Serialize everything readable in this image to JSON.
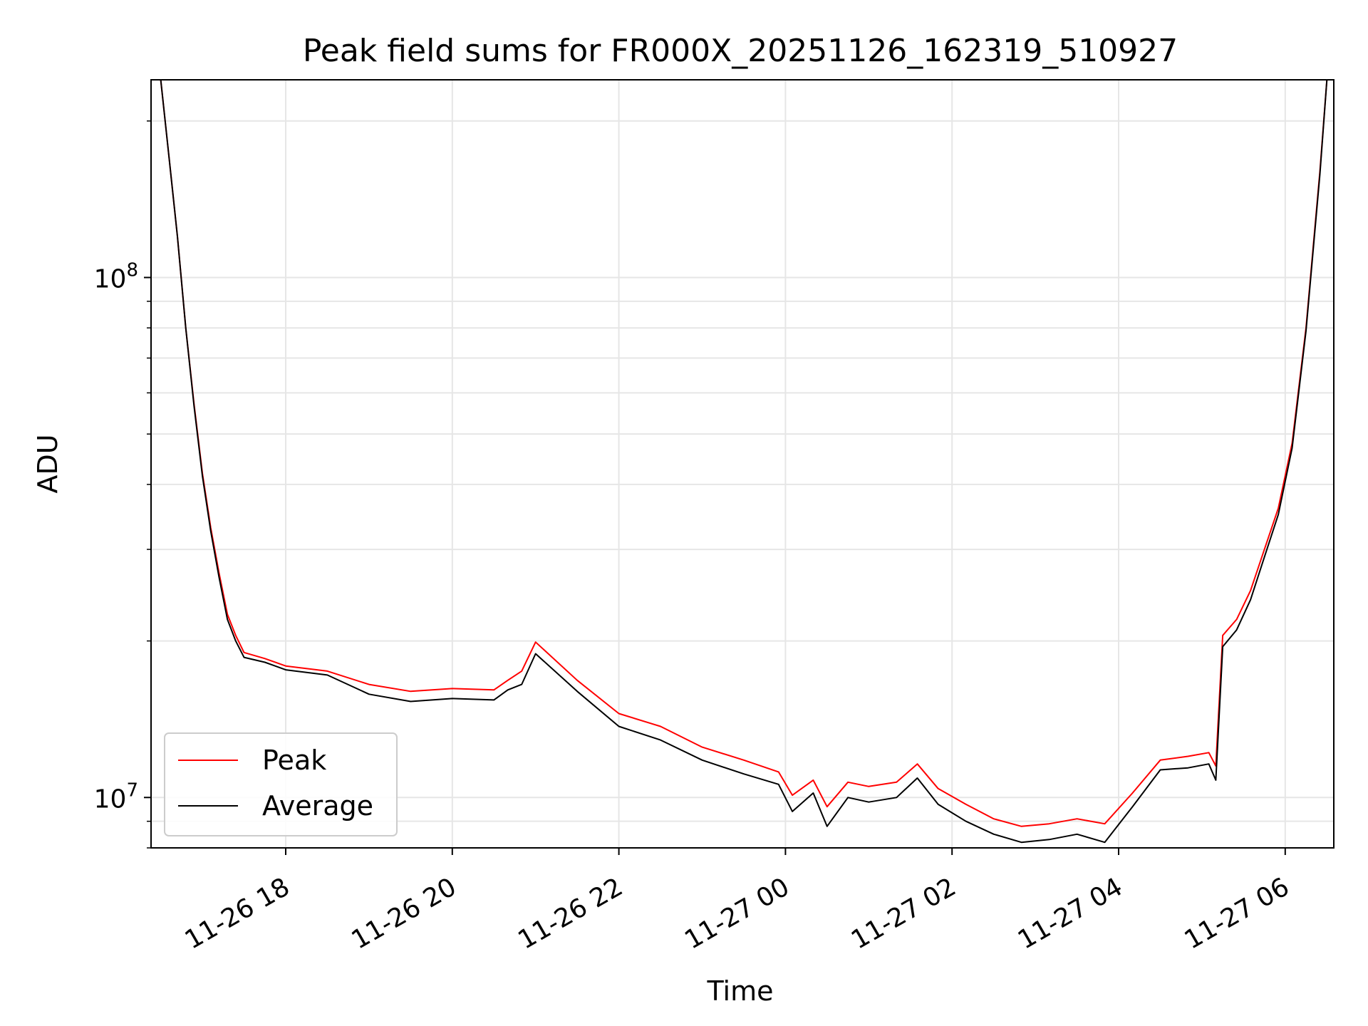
{
  "chart_data": {
    "type": "line",
    "title": "Peak field sums for FR000X_20251126_162319_510927",
    "xlabel": "Time",
    "ylabel": "ADU",
    "yscale": "log",
    "ylim": [
      8000000,
      240000000
    ],
    "xlim": [
      "2025-11-26 16:23",
      "2025-11-27 06:35"
    ],
    "grid": true,
    "legend_position": "lower-left",
    "x_ticks": [
      "11-26 18",
      "11-26 20",
      "11-26 22",
      "11-27 00",
      "11-27 02",
      "11-27 04",
      "11-27 06"
    ],
    "y_ticks": [
      {
        "base": "10",
        "exp": "7"
      },
      {
        "base": "10",
        "exp": "8"
      }
    ],
    "colors": {
      "Peak": "#ff0000",
      "Average": "#000000"
    },
    "x": [
      "2025-11-26 16:30",
      "2025-11-26 16:36",
      "2025-11-26 16:42",
      "2025-11-26 16:48",
      "2025-11-26 16:54",
      "2025-11-26 17:00",
      "2025-11-26 17:06",
      "2025-11-26 17:12",
      "2025-11-26 17:18",
      "2025-11-26 17:24",
      "2025-11-26 17:30",
      "2025-11-26 17:45",
      "2025-11-26 18:00",
      "2025-11-26 18:30",
      "2025-11-26 19:00",
      "2025-11-26 19:30",
      "2025-11-26 20:00",
      "2025-11-26 20:30",
      "2025-11-26 20:40",
      "2025-11-26 20:50",
      "2025-11-26 21:00",
      "2025-11-26 21:30",
      "2025-11-26 22:00",
      "2025-11-26 22:30",
      "2025-11-26 23:00",
      "2025-11-26 23:30",
      "2025-11-26 23:55",
      "2025-11-27 00:05",
      "2025-11-27 00:20",
      "2025-11-27 00:30",
      "2025-11-27 00:45",
      "2025-11-27 01:00",
      "2025-11-27 01:20",
      "2025-11-27 01:35",
      "2025-11-27 01:50",
      "2025-11-27 02:10",
      "2025-11-27 02:30",
      "2025-11-27 02:50",
      "2025-11-27 03:10",
      "2025-11-27 03:30",
      "2025-11-27 03:50",
      "2025-11-27 04:10",
      "2025-11-27 04:30",
      "2025-11-27 04:50",
      "2025-11-27 05:05",
      "2025-11-27 05:10",
      "2025-11-27 05:15",
      "2025-11-27 05:25",
      "2025-11-27 05:35",
      "2025-11-27 05:45",
      "2025-11-27 05:55",
      "2025-11-27 06:05",
      "2025-11-27 06:15",
      "2025-11-27 06:25",
      "2025-11-27 06:30"
    ],
    "series": [
      {
        "name": "Peak",
        "values": [
          240000000,
          170000000,
          120000000,
          80000000,
          57000000,
          42000000,
          33000000,
          27000000,
          22500000,
          20500000,
          19000000,
          18500000,
          17900000,
          17500000,
          16500000,
          16000000,
          16200000,
          16100000,
          16800000,
          17500000,
          19900000,
          16800000,
          14500000,
          13700000,
          12500000,
          11800000,
          11200000,
          10100000,
          10800000,
          9600000,
          10700000,
          10500000,
          10700000,
          11600000,
          10400000,
          9700000,
          9100000,
          8800000,
          8900000,
          9100000,
          8900000,
          10200000,
          11800000,
          12000000,
          12200000,
          11500000,
          20500000,
          22000000,
          25000000,
          30000000,
          36000000,
          48000000,
          80000000,
          160000000,
          240000000
        ]
      },
      {
        "name": "Average",
        "values": [
          240000000,
          170000000,
          120000000,
          80000000,
          56500000,
          41500000,
          32500000,
          26500000,
          22000000,
          20000000,
          18600000,
          18200000,
          17600000,
          17200000,
          15800000,
          15300000,
          15500000,
          15400000,
          16100000,
          16500000,
          18900000,
          16000000,
          13700000,
          12900000,
          11800000,
          11100000,
          10600000,
          9400000,
          10200000,
          8800000,
          10000000,
          9800000,
          10000000,
          10900000,
          9700000,
          9000000,
          8500000,
          8200000,
          8300000,
          8500000,
          8200000,
          9600000,
          11300000,
          11400000,
          11600000,
          10800000,
          19500000,
          21000000,
          24000000,
          29000000,
          35000000,
          47000000,
          79000000,
          158000000,
          240000000
        ]
      }
    ]
  }
}
